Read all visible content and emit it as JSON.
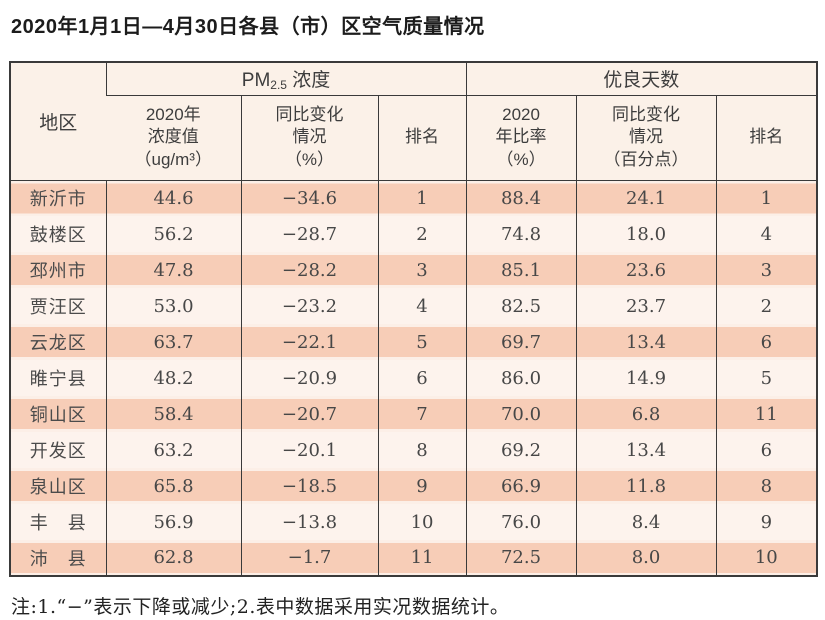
{
  "title": "2020年1月1日—4月30日各县（市）区空气质量情况",
  "note": "注:1.“−”表示下降或减少;2.表中数据采用实况数据统计。",
  "colors": {
    "row_stripe": "#f7cdb7",
    "row_stripe_edge": "#fcefe7",
    "row_light": "#fdf3ed",
    "header_bg": "#fbf1e8",
    "border": "#3a3a3a"
  },
  "chart_data": {
    "type": "table",
    "title": "2020年1月1日—4月30日各县（市）区空气质量情况",
    "header": {
      "region": "地区",
      "group_pm": {
        "prefix": "PM",
        "sub": "2.5",
        "suffix": " 浓度"
      },
      "group_days": "优良天数",
      "sub_headers": {
        "pm_value": "2020年\n浓度值\n（ug/m³）",
        "pm_change": "同比变化\n情况\n（%）",
        "pm_rank": "排名",
        "ratio": "2020\n年比率\n（%）",
        "ratio_change": "同比变化\n情况\n（百分点）",
        "ratio_rank": "排名"
      }
    },
    "columns": [
      "地区",
      "PM2.5浓度 2020年浓度值（ug/m³）",
      "PM2.5浓度 同比变化情况（%）",
      "PM2.5浓度 排名",
      "优良天数 2020年比率（%）",
      "优良天数 同比变化情况（百分点）",
      "优良天数 排名"
    ],
    "rows": [
      [
        "新沂市",
        "44.6",
        "−34.6",
        "1",
        "88.4",
        "24.1",
        "1"
      ],
      [
        "鼓楼区",
        "56.2",
        "−28.7",
        "2",
        "74.8",
        "18.0",
        "4"
      ],
      [
        "邳州市",
        "47.8",
        "−28.2",
        "3",
        "85.1",
        "23.6",
        "3"
      ],
      [
        "贾汪区",
        "53.0",
        "−23.2",
        "4",
        "82.5",
        "23.7",
        "2"
      ],
      [
        "云龙区",
        "63.7",
        "−22.1",
        "5",
        "69.7",
        "13.4",
        "6"
      ],
      [
        "睢宁县",
        "48.2",
        "−20.9",
        "6",
        "86.0",
        "14.9",
        "5"
      ],
      [
        "铜山区",
        "58.4",
        "−20.7",
        "7",
        "70.0",
        "6.8",
        "11"
      ],
      [
        "开发区",
        "63.2",
        "−20.1",
        "8",
        "69.2",
        "13.4",
        "6"
      ],
      [
        "泉山区",
        "65.8",
        "−18.5",
        "9",
        "66.9",
        "11.8",
        "8"
      ],
      [
        "丰　县",
        "56.9",
        "−13.8",
        "10",
        "76.0",
        "8.4",
        "9"
      ],
      [
        "沛　县",
        "62.8",
        "−1.7",
        "11",
        "72.5",
        "8.0",
        "10"
      ]
    ]
  }
}
